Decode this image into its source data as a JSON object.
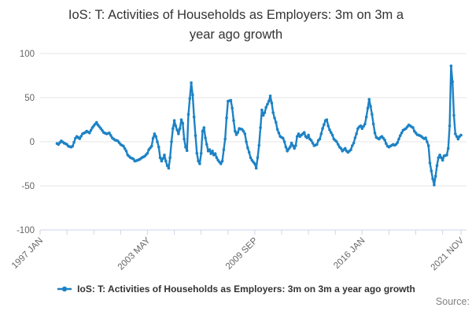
{
  "title": {
    "full": "IoS: T: Activities of Households as Employers: 3m on 3m a year ago growth",
    "line1": "IoS: T: Activities of Households as Employers: 3m on 3m a",
    "line2": "year ago growth"
  },
  "legend": {
    "label": "IoS: T: Activities of Households as Employers: 3m on 3m a year ago growth",
    "marker": "line-with-dot-icon"
  },
  "source_label": "Source:",
  "colors": {
    "series": "#1d82c5",
    "title_text": "#333333",
    "axis_label_text": "#666666",
    "gridline": "#e6e6e6",
    "axis_line": "#ccd6eb",
    "legend_text": "#333333",
    "source_text": "#808080",
    "background": "#ffffff"
  },
  "chart_data": {
    "type": "line",
    "title": "IoS: T: Activities of Households as Employers: 3m on 3m a year ago growth",
    "legend_position": "bottom",
    "grid": "horizontal-only",
    "y_axis": {
      "ticks": [
        100,
        50,
        0,
        -50,
        -100
      ],
      "range": [
        -100,
        100
      ],
      "label": ""
    },
    "x_axis": {
      "unit": "month index from 1997 JAN",
      "first_category": "1997 JAN",
      "last_category": "2021 NOV",
      "labels": [
        {
          "month": 0,
          "text": "1997 JAN"
        },
        {
          "month": 76,
          "text": "2003 MAY"
        },
        {
          "month": 152,
          "text": "2009 SEP"
        },
        {
          "month": 228,
          "text": "2016 JAN"
        },
        {
          "month": 298,
          "text": "2021 NOV"
        }
      ],
      "minor_tick_interval_months": 19,
      "label_rotation_deg": -45
    },
    "series": [
      {
        "name": "IoS: T: Activities of Households as Employers: 3m on 3m a year ago growth",
        "marker": "dot",
        "points": [
          [
            12,
            -2
          ],
          [
            13,
            -3
          ],
          [
            15,
            1
          ],
          [
            17,
            -1.5
          ],
          [
            19,
            -3
          ],
          [
            20,
            -5
          ],
          [
            22,
            -6
          ],
          [
            23,
            -5
          ],
          [
            25,
            4
          ],
          [
            26,
            6
          ],
          [
            28,
            3.5
          ],
          [
            30,
            9
          ],
          [
            32,
            10.5
          ],
          [
            33,
            12
          ],
          [
            35,
            10
          ],
          [
            37,
            16
          ],
          [
            39,
            20
          ],
          [
            40,
            22
          ],
          [
            41,
            19
          ],
          [
            43,
            15
          ],
          [
            45,
            10.5
          ],
          [
            47,
            9
          ],
          [
            49,
            10
          ],
          [
            51,
            4.5
          ],
          [
            53,
            2
          ],
          [
            55,
            1
          ],
          [
            56,
            -1
          ],
          [
            57,
            -3
          ],
          [
            59,
            -5
          ],
          [
            61,
            -10.5
          ],
          [
            62,
            -15
          ],
          [
            64,
            -18
          ],
          [
            66,
            -19.5
          ],
          [
            67,
            -22
          ],
          [
            69,
            -21
          ],
          [
            71,
            -19.5
          ],
          [
            72,
            -18
          ],
          [
            74,
            -16.5
          ],
          [
            76,
            -13
          ],
          [
            77,
            -9
          ],
          [
            79,
            -5
          ],
          [
            80,
            4
          ],
          [
            81,
            9
          ],
          [
            82,
            6
          ],
          [
            84,
            -6
          ],
          [
            85,
            -18
          ],
          [
            86,
            -22
          ],
          [
            87,
            -19
          ],
          [
            88,
            -15
          ],
          [
            89,
            -22
          ],
          [
            90,
            -27
          ],
          [
            91,
            -30
          ],
          [
            92,
            -18
          ],
          [
            93,
            0
          ],
          [
            94,
            15
          ],
          [
            95,
            24
          ],
          [
            96,
            18
          ],
          [
            98,
            9
          ],
          [
            99,
            15
          ],
          [
            100,
            25
          ],
          [
            101,
            21
          ],
          [
            102,
            3
          ],
          [
            103,
            -6
          ],
          [
            104,
            -10
          ],
          [
            105,
            31
          ],
          [
            106,
            49
          ],
          [
            107,
            67
          ],
          [
            108,
            53
          ],
          [
            109,
            28
          ],
          [
            110,
            7
          ],
          [
            111,
            -13
          ],
          [
            112,
            -22
          ],
          [
            113,
            -25
          ],
          [
            114,
            -13
          ],
          [
            115,
            12
          ],
          [
            116,
            16
          ],
          [
            117,
            4.5
          ],
          [
            118,
            -3
          ],
          [
            119,
            -10.5
          ],
          [
            120,
            -9
          ],
          [
            121,
            -13.5
          ],
          [
            122,
            -10.5
          ],
          [
            123,
            -15
          ],
          [
            124,
            -13.5
          ],
          [
            125,
            -18
          ],
          [
            126,
            -21
          ],
          [
            128,
            -25
          ],
          [
            129,
            -22
          ],
          [
            130,
            -9
          ],
          [
            131,
            3
          ],
          [
            132,
            27
          ],
          [
            133,
            46
          ],
          [
            135,
            47
          ],
          [
            136,
            38
          ],
          [
            137,
            24
          ],
          [
            138,
            12
          ],
          [
            139,
            8
          ],
          [
            140,
            10.5
          ],
          [
            141,
            15
          ],
          [
            143,
            14
          ],
          [
            144,
            12
          ],
          [
            145,
            9
          ],
          [
            146,
            0
          ],
          [
            147,
            -7
          ],
          [
            148,
            -12
          ],
          [
            149,
            -18
          ],
          [
            150,
            -21
          ],
          [
            152,
            -25
          ],
          [
            153,
            -30
          ],
          [
            154,
            -18
          ],
          [
            155,
            -4
          ],
          [
            156,
            16
          ],
          [
            157,
            36
          ],
          [
            158,
            30
          ],
          [
            159,
            33
          ],
          [
            160,
            39
          ],
          [
            162,
            46
          ],
          [
            163,
            52
          ],
          [
            164,
            44
          ],
          [
            165,
            33
          ],
          [
            166,
            27
          ],
          [
            167,
            22
          ],
          [
            168,
            14
          ],
          [
            169,
            10
          ],
          [
            170,
            6
          ],
          [
            172,
            4
          ],
          [
            173,
            0
          ],
          [
            174,
            -6
          ],
          [
            175,
            -10.5
          ],
          [
            177,
            -6
          ],
          [
            178,
            -1.5
          ],
          [
            179,
            -4.5
          ],
          [
            180,
            -7.5
          ],
          [
            181,
            -4.5
          ],
          [
            182,
            6
          ],
          [
            183,
            9
          ],
          [
            184,
            6
          ],
          [
            185,
            7.5
          ],
          [
            187,
            10.5
          ],
          [
            188,
            6
          ],
          [
            189,
            4.5
          ],
          [
            190,
            7.5
          ],
          [
            191,
            3
          ],
          [
            192,
            1.5
          ],
          [
            193,
            -1.5
          ],
          [
            194,
            -4.5
          ],
          [
            196,
            -3
          ],
          [
            197,
            1.5
          ],
          [
            198,
            3
          ],
          [
            199,
            9
          ],
          [
            200,
            15
          ],
          [
            201,
            19.5
          ],
          [
            202,
            24
          ],
          [
            203,
            25
          ],
          [
            204,
            18
          ],
          [
            205,
            13.5
          ],
          [
            206,
            10.5
          ],
          [
            207,
            7.5
          ],
          [
            208,
            3
          ],
          [
            210,
            0
          ],
          [
            211,
            -3
          ],
          [
            212,
            -6
          ],
          [
            213,
            -7.5
          ],
          [
            214,
            -10.5
          ],
          [
            215,
            -9
          ],
          [
            216,
            -7.5
          ],
          [
            217,
            -10.5
          ],
          [
            218,
            -12
          ],
          [
            220,
            -9
          ],
          [
            221,
            -4.5
          ],
          [
            222,
            -1.5
          ],
          [
            223,
            4.5
          ],
          [
            224,
            9
          ],
          [
            225,
            15
          ],
          [
            226,
            17
          ],
          [
            227,
            18
          ],
          [
            228,
            15
          ],
          [
            230,
            20
          ],
          [
            231,
            28
          ],
          [
            232,
            38
          ],
          [
            233,
            48
          ],
          [
            234,
            40
          ],
          [
            235,
            31
          ],
          [
            236,
            20
          ],
          [
            237,
            10
          ],
          [
            238,
            5
          ],
          [
            240,
            3
          ],
          [
            241,
            5
          ],
          [
            242,
            6
          ],
          [
            243,
            4
          ],
          [
            244,
            2
          ],
          [
            245,
            -2
          ],
          [
            246,
            -5
          ],
          [
            247,
            -6
          ],
          [
            249,
            -4
          ],
          [
            250,
            -3
          ],
          [
            251,
            -4
          ],
          [
            252,
            -3
          ],
          [
            253,
            -1
          ],
          [
            254,
            3
          ],
          [
            255,
            7
          ],
          [
            256,
            10
          ],
          [
            257,
            13
          ],
          [
            259,
            15
          ],
          [
            260,
            17
          ],
          [
            261,
            19
          ],
          [
            262,
            18
          ],
          [
            263,
            17
          ],
          [
            264,
            16
          ],
          [
            265,
            12
          ],
          [
            266,
            10
          ],
          [
            267,
            8
          ],
          [
            269,
            7
          ],
          [
            270,
            6
          ],
          [
            271,
            4.5
          ],
          [
            272,
            3.5
          ],
          [
            273,
            4.5
          ],
          [
            274,
            0
          ],
          [
            275,
            -4.5
          ],
          [
            276,
            -24
          ],
          [
            277,
            -33
          ],
          [
            278,
            -42
          ],
          [
            279,
            -49
          ],
          [
            280,
            -39
          ],
          [
            281,
            -27
          ],
          [
            282,
            -18
          ],
          [
            283,
            -15
          ],
          [
            284,
            -18
          ],
          [
            285,
            -21
          ],
          [
            286,
            -16
          ],
          [
            288,
            -15
          ],
          [
            289,
            -7.5
          ],
          [
            290,
            18
          ],
          [
            291,
            86
          ],
          [
            292,
            68
          ],
          [
            293,
            30
          ],
          [
            294,
            9
          ],
          [
            295,
            6
          ],
          [
            296,
            3
          ],
          [
            297,
            6
          ],
          [
            298,
            7.5
          ]
        ]
      }
    ]
  }
}
